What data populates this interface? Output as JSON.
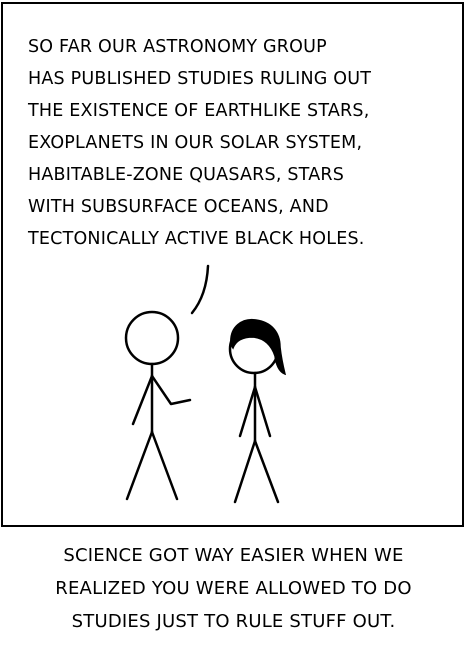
{
  "panel": {
    "speech_lines": [
      "SO FAR OUR ASTRONOMY GROUP",
      "HAS PUBLISHED STUDIES RULING OUT",
      "THE EXISTENCE OF EARTHLIKE STARS,",
      "EXOPLANETS IN OUR SOLAR SYSTEM,",
      "HABITABLE-ZONE QUASARS, STARS",
      "WITH SUBSURFACE OCEANS, AND",
      "TECTONICALLY ACTIVE BLACK HOLES."
    ]
  },
  "caption": {
    "lines": [
      "SCIENCE GOT WAY EASIER WHEN WE",
      "REALIZED YOU WERE ALLOWED TO DO",
      "STUDIES JUST TO RULE STUFF OUT."
    ]
  }
}
